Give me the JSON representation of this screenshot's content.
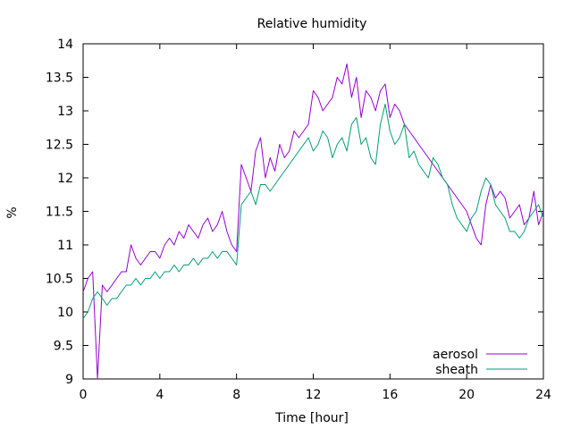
{
  "chart_data": {
    "type": "line",
    "title": "Relative humidity",
    "xlabel": "Time [hour]",
    "ylabel": "%",
    "xlim": [
      0,
      24
    ],
    "ylim": [
      9,
      14
    ],
    "xticks": [
      0,
      4,
      8,
      12,
      16,
      20,
      24
    ],
    "yticks": [
      9,
      9.5,
      10,
      10.5,
      11,
      11.5,
      12,
      12.5,
      13,
      13.5,
      14
    ],
    "ytick_labels": [
      "9",
      "9.5",
      "10",
      "10.5",
      "11",
      "11.5",
      "12",
      "12.5",
      "13",
      "13.5",
      "14"
    ],
    "grid": false,
    "legend_position": "bottom-right",
    "series": [
      {
        "name": "aerosol",
        "color": "#9400d3",
        "x": [
          0,
          0.25,
          0.5,
          0.75,
          1,
          1.25,
          1.5,
          1.75,
          2,
          2.25,
          2.5,
          2.75,
          3,
          3.25,
          3.5,
          3.75,
          4,
          4.25,
          4.5,
          4.75,
          5,
          5.25,
          5.5,
          5.75,
          6,
          6.25,
          6.5,
          6.75,
          7,
          7.25,
          7.5,
          7.75,
          8,
          8.25,
          8.5,
          8.75,
          9,
          9.25,
          9.5,
          9.75,
          10,
          10.25,
          10.5,
          10.75,
          11,
          11.25,
          11.5,
          11.75,
          12,
          12.25,
          12.5,
          12.75,
          13,
          13.25,
          13.5,
          13.75,
          14,
          14.25,
          14.5,
          14.75,
          15,
          15.25,
          15.5,
          15.75,
          16,
          16.25,
          16.5,
          16.75,
          17,
          17.25,
          17.5,
          17.75,
          18,
          18.25,
          18.5,
          18.75,
          19,
          19.25,
          19.5,
          19.75,
          20,
          20.25,
          20.5,
          20.75,
          21,
          21.25,
          21.5,
          21.75,
          22,
          22.25,
          22.5,
          22.75,
          23,
          23.25,
          23.5,
          23.75,
          24
        ],
        "values": [
          10.3,
          10.5,
          10.6,
          9.0,
          10.4,
          10.3,
          10.4,
          10.5,
          10.6,
          10.6,
          11.0,
          10.8,
          10.7,
          10.8,
          10.9,
          10.9,
          10.8,
          11.0,
          11.1,
          11.0,
          11.2,
          11.1,
          11.3,
          11.2,
          11.1,
          11.3,
          11.4,
          11.2,
          11.3,
          11.5,
          11.2,
          11.0,
          10.9,
          12.2,
          12.0,
          11.8,
          12.4,
          12.6,
          12.0,
          12.3,
          12.1,
          12.5,
          12.3,
          12.4,
          12.7,
          12.6,
          12.7,
          12.8,
          13.3,
          13.2,
          13.0,
          13.1,
          13.2,
          13.5,
          13.4,
          13.7,
          13.2,
          13.5,
          12.9,
          13.3,
          13.2,
          13.0,
          13.3,
          13.4,
          12.9,
          13.1,
          13.0,
          12.8,
          12.7,
          12.6,
          12.5,
          12.4,
          12.3,
          12.2,
          12.1,
          12.0,
          11.9,
          11.8,
          11.7,
          11.6,
          11.5,
          11.3,
          11.1,
          11.0,
          11.6,
          11.9,
          11.7,
          11.8,
          11.7,
          11.4,
          11.5,
          11.6,
          11.3,
          11.4,
          11.8,
          11.3,
          11.5
        ]
      },
      {
        "name": "sheath",
        "color": "#009e73",
        "x": [
          0,
          0.25,
          0.5,
          0.75,
          1,
          1.25,
          1.5,
          1.75,
          2,
          2.25,
          2.5,
          2.75,
          3,
          3.25,
          3.5,
          3.75,
          4,
          4.25,
          4.5,
          4.75,
          5,
          5.25,
          5.5,
          5.75,
          6,
          6.25,
          6.5,
          6.75,
          7,
          7.25,
          7.5,
          7.75,
          8,
          8.25,
          8.5,
          8.75,
          9,
          9.25,
          9.5,
          9.75,
          10,
          10.25,
          10.5,
          10.75,
          11,
          11.25,
          11.5,
          11.75,
          12,
          12.25,
          12.5,
          12.75,
          13,
          13.25,
          13.5,
          13.75,
          14,
          14.25,
          14.5,
          14.75,
          15,
          15.25,
          15.5,
          15.75,
          16,
          16.25,
          16.5,
          16.75,
          17,
          17.25,
          17.5,
          17.75,
          18,
          18.25,
          18.5,
          18.75,
          19,
          19.25,
          19.5,
          19.75,
          20,
          20.25,
          20.5,
          20.75,
          21,
          21.25,
          21.5,
          21.75,
          22,
          22.25,
          22.5,
          22.75,
          23,
          23.25,
          23.5,
          23.75,
          24
        ],
        "values": [
          9.9,
          10.0,
          10.2,
          10.3,
          10.2,
          10.1,
          10.2,
          10.2,
          10.3,
          10.4,
          10.4,
          10.5,
          10.4,
          10.5,
          10.5,
          10.6,
          10.5,
          10.6,
          10.6,
          10.7,
          10.6,
          10.7,
          10.7,
          10.8,
          10.7,
          10.8,
          10.8,
          10.9,
          10.8,
          10.9,
          10.9,
          10.8,
          10.7,
          11.6,
          11.7,
          11.8,
          11.6,
          11.9,
          11.9,
          11.8,
          11.9,
          12.0,
          12.1,
          12.2,
          12.3,
          12.4,
          12.5,
          12.6,
          12.4,
          12.5,
          12.7,
          12.6,
          12.3,
          12.5,
          12.6,
          12.4,
          12.8,
          12.9,
          12.5,
          12.6,
          12.3,
          12.2,
          12.8,
          13.1,
          12.7,
          12.5,
          12.6,
          12.8,
          12.3,
          12.4,
          12.2,
          12.1,
          12.0,
          12.3,
          12.2,
          12.0,
          11.9,
          11.6,
          11.4,
          11.3,
          11.2,
          11.4,
          11.5,
          11.8,
          12.0,
          11.9,
          11.6,
          11.5,
          11.4,
          11.2,
          11.2,
          11.1,
          11.2,
          11.4,
          11.5,
          11.6,
          11.4
        ]
      }
    ]
  }
}
